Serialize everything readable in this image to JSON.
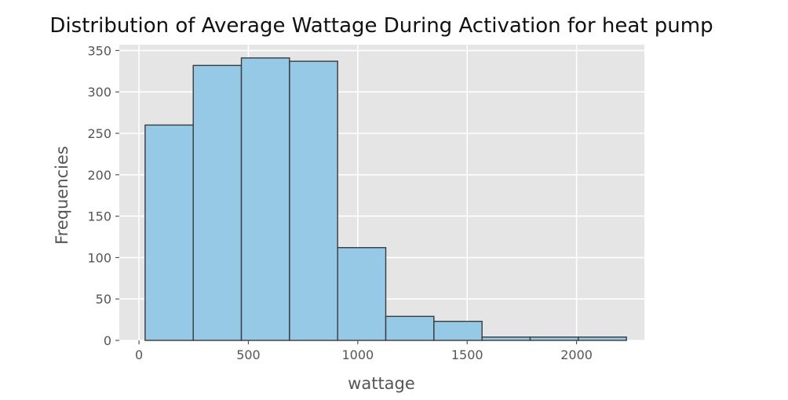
{
  "chart_data": {
    "type": "bar",
    "title": "Distribution of Average Wattage During Activation for heat pump",
    "xlabel": "wattage",
    "ylabel": "Frequencies",
    "xlim": [
      -90,
      2310
    ],
    "ylim": [
      0,
      357
    ],
    "x_ticks": [
      0,
      500,
      1000,
      1500,
      2000
    ],
    "y_ticks": [
      0,
      50,
      100,
      150,
      200,
      250,
      300,
      350
    ],
    "bin_edges": [
      28,
      248,
      468,
      688,
      908,
      1128,
      1348,
      1568,
      1788,
      2008,
      2228
    ],
    "values": [
      260,
      332,
      341,
      337,
      112,
      29,
      23,
      4,
      4,
      4
    ],
    "bar_color": "#95c9e6",
    "bar_edge_color": "#3a3a3a",
    "plot_background": "#e5e5e5",
    "grid": true
  }
}
